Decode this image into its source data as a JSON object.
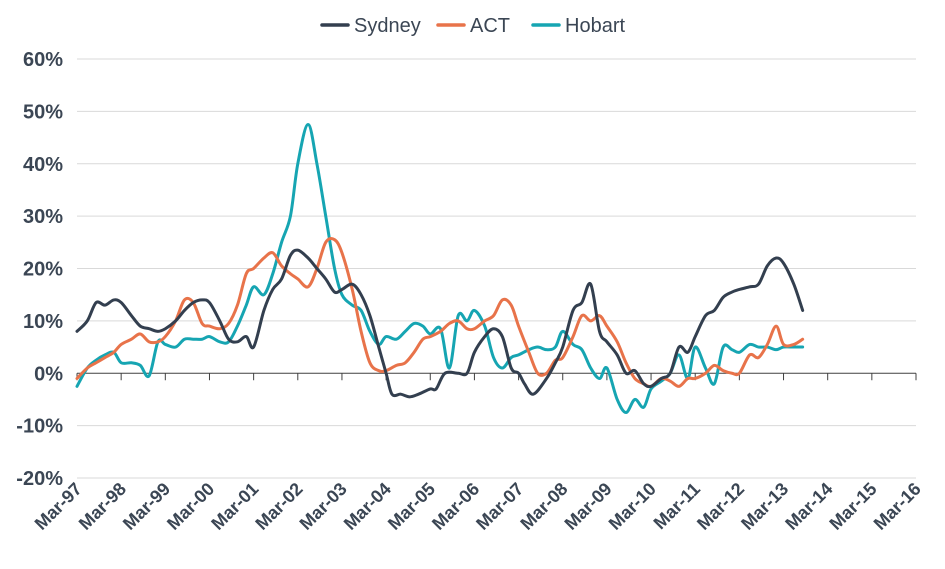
{
  "chart_data": {
    "type": "line",
    "title": "",
    "xlabel": "",
    "ylabel": "",
    "legend_position": "top-center",
    "grid": "horizontal",
    "ylim": [
      -20,
      60
    ],
    "y_ticks": [
      60,
      50,
      40,
      30,
      20,
      10,
      0,
      -10,
      -20
    ],
    "y_tick_labels": [
      "60%",
      "50%",
      "40%",
      "30%",
      "20%",
      "10%",
      "0%",
      "-10%",
      "-20%"
    ],
    "x_range": [
      1997.167,
      2016.167
    ],
    "x_ticks": [
      1997.167,
      1998.167,
      1999.167,
      2000.167,
      2001.167,
      2002.167,
      2003.167,
      2004.167,
      2005.167,
      2006.167,
      2007.167,
      2008.167,
      2009.167,
      2010.167,
      2011.167,
      2012.167,
      2013.167,
      2014.167,
      2015.167,
      2016.167
    ],
    "x_tick_labels": [
      "Mar-97",
      "Mar-98",
      "Mar-99",
      "Mar-00",
      "Mar-01",
      "Mar-02",
      "Mar-03",
      "Mar-04",
      "Mar-05",
      "Mar-06",
      "Mar-07",
      "Mar-08",
      "Mar-09",
      "Mar-10",
      "Mar-11",
      "Mar-12",
      "Mar-13",
      "Mar-14",
      "Mar-15",
      "Mar-16"
    ],
    "series": [
      {
        "name": "Sydney",
        "color": "#333f4f",
        "points": [
          [
            1997.167,
            8
          ],
          [
            1997.4,
            10
          ],
          [
            1997.6,
            13.5
          ],
          [
            1997.8,
            13
          ],
          [
            1998.0,
            14
          ],
          [
            1998.167,
            13.5
          ],
          [
            1998.4,
            11
          ],
          [
            1998.6,
            9
          ],
          [
            1998.8,
            8.5
          ],
          [
            1999.0,
            8
          ],
          [
            1999.167,
            8.5
          ],
          [
            1999.4,
            10
          ],
          [
            1999.6,
            12
          ],
          [
            1999.8,
            13.5
          ],
          [
            2000.0,
            14
          ],
          [
            2000.167,
            13.5
          ],
          [
            2000.4,
            10
          ],
          [
            2000.6,
            6.5
          ],
          [
            2000.8,
            6
          ],
          [
            2001.0,
            7
          ],
          [
            2001.167,
            5
          ],
          [
            2001.4,
            12
          ],
          [
            2001.6,
            16
          ],
          [
            2001.8,
            18
          ],
          [
            2002.0,
            22.5
          ],
          [
            2002.167,
            23.5
          ],
          [
            2002.4,
            22
          ],
          [
            2002.6,
            20
          ],
          [
            2002.8,
            18
          ],
          [
            2003.0,
            15.5
          ],
          [
            2003.167,
            16
          ],
          [
            2003.4,
            17
          ],
          [
            2003.6,
            15
          ],
          [
            2003.8,
            11
          ],
          [
            2004.0,
            5
          ],
          [
            2004.167,
            0
          ],
          [
            2004.3,
            -4
          ],
          [
            2004.5,
            -4
          ],
          [
            2004.7,
            -4.5
          ],
          [
            2004.9,
            -4
          ],
          [
            2005.167,
            -3
          ],
          [
            2005.3,
            -3
          ],
          [
            2005.5,
            0
          ],
          [
            2005.8,
            0
          ],
          [
            2006.0,
            0
          ],
          [
            2006.167,
            4
          ],
          [
            2006.4,
            7
          ],
          [
            2006.6,
            8.5
          ],
          [
            2006.8,
            7
          ],
          [
            2007.0,
            1
          ],
          [
            2007.167,
            0
          ],
          [
            2007.3,
            -2
          ],
          [
            2007.5,
            -4
          ],
          [
            2007.8,
            -1
          ],
          [
            2008.0,
            2
          ],
          [
            2008.167,
            5
          ],
          [
            2008.4,
            12
          ],
          [
            2008.6,
            13.5
          ],
          [
            2008.8,
            17
          ],
          [
            2009.0,
            8
          ],
          [
            2009.167,
            6
          ],
          [
            2009.4,
            3.5
          ],
          [
            2009.6,
            0
          ],
          [
            2009.8,
            0.5
          ],
          [
            2010.0,
            -2
          ],
          [
            2010.167,
            -2.5
          ],
          [
            2010.4,
            -1
          ],
          [
            2010.6,
            0
          ],
          [
            2010.8,
            5
          ],
          [
            2011.0,
            4
          ],
          [
            2011.167,
            7
          ],
          [
            2011.4,
            11
          ],
          [
            2011.6,
            12
          ],
          [
            2011.8,
            14.5
          ],
          [
            2012.0,
            15.5
          ],
          [
            2012.167,
            16
          ],
          [
            2012.4,
            16.5
          ],
          [
            2012.6,
            17
          ],
          [
            2012.8,
            20.5
          ],
          [
            2013.0,
            22
          ],
          [
            2013.167,
            21
          ],
          [
            2013.4,
            17
          ],
          [
            2013.6,
            12
          ]
        ]
      },
      {
        "name": "ACT",
        "color": "#e8734a",
        "points": [
          [
            1997.167,
            -1
          ],
          [
            1997.4,
            1
          ],
          [
            1997.6,
            2
          ],
          [
            1997.8,
            3
          ],
          [
            1998.0,
            4
          ],
          [
            1998.167,
            5.5
          ],
          [
            1998.4,
            6.5
          ],
          [
            1998.6,
            7.5
          ],
          [
            1998.8,
            6
          ],
          [
            1999.0,
            6
          ],
          [
            1999.167,
            7
          ],
          [
            1999.4,
            10
          ],
          [
            1999.6,
            14
          ],
          [
            1999.8,
            13.5
          ],
          [
            2000.0,
            9.5
          ],
          [
            2000.167,
            9
          ],
          [
            2000.4,
            8.5
          ],
          [
            2000.6,
            9.5
          ],
          [
            2000.8,
            13
          ],
          [
            2001.0,
            19
          ],
          [
            2001.167,
            20
          ],
          [
            2001.4,
            22
          ],
          [
            2001.6,
            23
          ],
          [
            2001.8,
            20.5
          ],
          [
            2002.0,
            19
          ],
          [
            2002.167,
            18
          ],
          [
            2002.4,
            16.5
          ],
          [
            2002.6,
            20
          ],
          [
            2002.8,
            25
          ],
          [
            2003.0,
            25.5
          ],
          [
            2003.167,
            23
          ],
          [
            2003.4,
            16
          ],
          [
            2003.6,
            8
          ],
          [
            2003.8,
            2
          ],
          [
            2004.0,
            0.5
          ],
          [
            2004.167,
            0.5
          ],
          [
            2004.4,
            1.5
          ],
          [
            2004.6,
            2
          ],
          [
            2004.8,
            4
          ],
          [
            2005.0,
            6.5
          ],
          [
            2005.167,
            7
          ],
          [
            2005.4,
            8
          ],
          [
            2005.6,
            9.5
          ],
          [
            2005.8,
            10
          ],
          [
            2006.0,
            8.5
          ],
          [
            2006.167,
            8.5
          ],
          [
            2006.4,
            10
          ],
          [
            2006.6,
            11
          ],
          [
            2006.8,
            14
          ],
          [
            2007.0,
            13
          ],
          [
            2007.167,
            9
          ],
          [
            2007.4,
            4
          ],
          [
            2007.6,
            0
          ],
          [
            2007.8,
            0
          ],
          [
            2008.0,
            2.5
          ],
          [
            2008.167,
            3
          ],
          [
            2008.4,
            7
          ],
          [
            2008.6,
            11
          ],
          [
            2008.8,
            10
          ],
          [
            2009.0,
            11
          ],
          [
            2009.167,
            9
          ],
          [
            2009.4,
            6
          ],
          [
            2009.6,
            2
          ],
          [
            2009.8,
            -1
          ],
          [
            2010.0,
            -2
          ],
          [
            2010.167,
            -2.5
          ],
          [
            2010.4,
            -1
          ],
          [
            2010.6,
            -1.5
          ],
          [
            2010.8,
            -2.5
          ],
          [
            2011.0,
            -1
          ],
          [
            2011.167,
            -1
          ],
          [
            2011.4,
            0
          ],
          [
            2011.6,
            1.5
          ],
          [
            2011.8,
            0.5
          ],
          [
            2012.0,
            0
          ],
          [
            2012.167,
            0
          ],
          [
            2012.4,
            3.5
          ],
          [
            2012.6,
            3
          ],
          [
            2012.8,
            5.5
          ],
          [
            2013.0,
            9
          ],
          [
            2013.167,
            5.5
          ],
          [
            2013.4,
            5.5
          ],
          [
            2013.6,
            6.5
          ]
        ]
      },
      {
        "name": "Hobart",
        "color": "#16a5b2",
        "points": [
          [
            1997.167,
            -2.5
          ],
          [
            1997.4,
            1
          ],
          [
            1997.6,
            2.5
          ],
          [
            1997.8,
            3.5
          ],
          [
            1998.0,
            4
          ],
          [
            1998.167,
            2
          ],
          [
            1998.4,
            2
          ],
          [
            1998.6,
            1.5
          ],
          [
            1998.8,
            -0.5
          ],
          [
            1999.0,
            6
          ],
          [
            1999.167,
            5.5
          ],
          [
            1999.4,
            5
          ],
          [
            1999.6,
            6.5
          ],
          [
            1999.8,
            6.5
          ],
          [
            2000.0,
            6.5
          ],
          [
            2000.167,
            7
          ],
          [
            2000.4,
            6
          ],
          [
            2000.6,
            6
          ],
          [
            2000.8,
            9
          ],
          [
            2001.0,
            13
          ],
          [
            2001.167,
            16.5
          ],
          [
            2001.4,
            15
          ],
          [
            2001.6,
            19
          ],
          [
            2001.8,
            25
          ],
          [
            2002.0,
            30
          ],
          [
            2002.167,
            40
          ],
          [
            2002.4,
            47.5
          ],
          [
            2002.6,
            40
          ],
          [
            2002.8,
            30
          ],
          [
            2003.0,
            20
          ],
          [
            2003.167,
            15
          ],
          [
            2003.4,
            13
          ],
          [
            2003.6,
            12
          ],
          [
            2003.8,
            8
          ],
          [
            2004.0,
            5.5
          ],
          [
            2004.167,
            7
          ],
          [
            2004.4,
            6.5
          ],
          [
            2004.6,
            8
          ],
          [
            2004.8,
            9.5
          ],
          [
            2005.0,
            9
          ],
          [
            2005.167,
            7.5
          ],
          [
            2005.4,
            8.5
          ],
          [
            2005.6,
            1
          ],
          [
            2005.8,
            11
          ],
          [
            2006.0,
            10
          ],
          [
            2006.167,
            12
          ],
          [
            2006.4,
            9
          ],
          [
            2006.6,
            3
          ],
          [
            2006.8,
            1
          ],
          [
            2007.0,
            3
          ],
          [
            2007.167,
            3.5
          ],
          [
            2007.4,
            4.5
          ],
          [
            2007.6,
            5
          ],
          [
            2007.8,
            4.5
          ],
          [
            2008.0,
            5
          ],
          [
            2008.167,
            8
          ],
          [
            2008.4,
            5.5
          ],
          [
            2008.6,
            4.5
          ],
          [
            2008.8,
            1
          ],
          [
            2009.0,
            -1
          ],
          [
            2009.167,
            1
          ],
          [
            2009.4,
            -5
          ],
          [
            2009.6,
            -7.5
          ],
          [
            2009.8,
            -5
          ],
          [
            2010.0,
            -6.5
          ],
          [
            2010.167,
            -3
          ],
          [
            2010.4,
            -1.5
          ],
          [
            2010.6,
            0
          ],
          [
            2010.8,
            3.5
          ],
          [
            2011.0,
            -1
          ],
          [
            2011.167,
            5
          ],
          [
            2011.4,
            1
          ],
          [
            2011.6,
            -2
          ],
          [
            2011.8,
            5
          ],
          [
            2012.0,
            4.5
          ],
          [
            2012.167,
            4
          ],
          [
            2012.4,
            5.5
          ],
          [
            2012.6,
            5
          ],
          [
            2012.8,
            5
          ],
          [
            2013.0,
            4.5
          ],
          [
            2013.167,
            5
          ],
          [
            2013.4,
            5
          ],
          [
            2013.6,
            5
          ]
        ]
      }
    ]
  }
}
